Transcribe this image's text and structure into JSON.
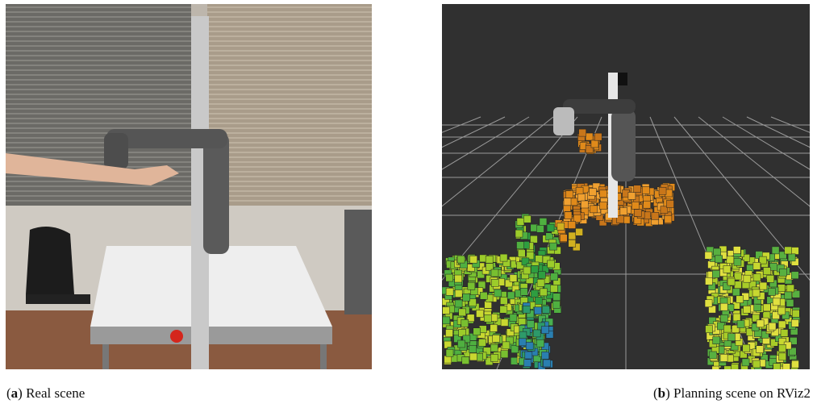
{
  "figure": {
    "panels": [
      {
        "caption": {
          "prefix": "(",
          "label": "a",
          "text": ") Real scene"
        }
      },
      {
        "caption": {
          "prefix": "(",
          "label": "b",
          "text": ") Planning scene on RViz2"
        }
      }
    ]
  }
}
